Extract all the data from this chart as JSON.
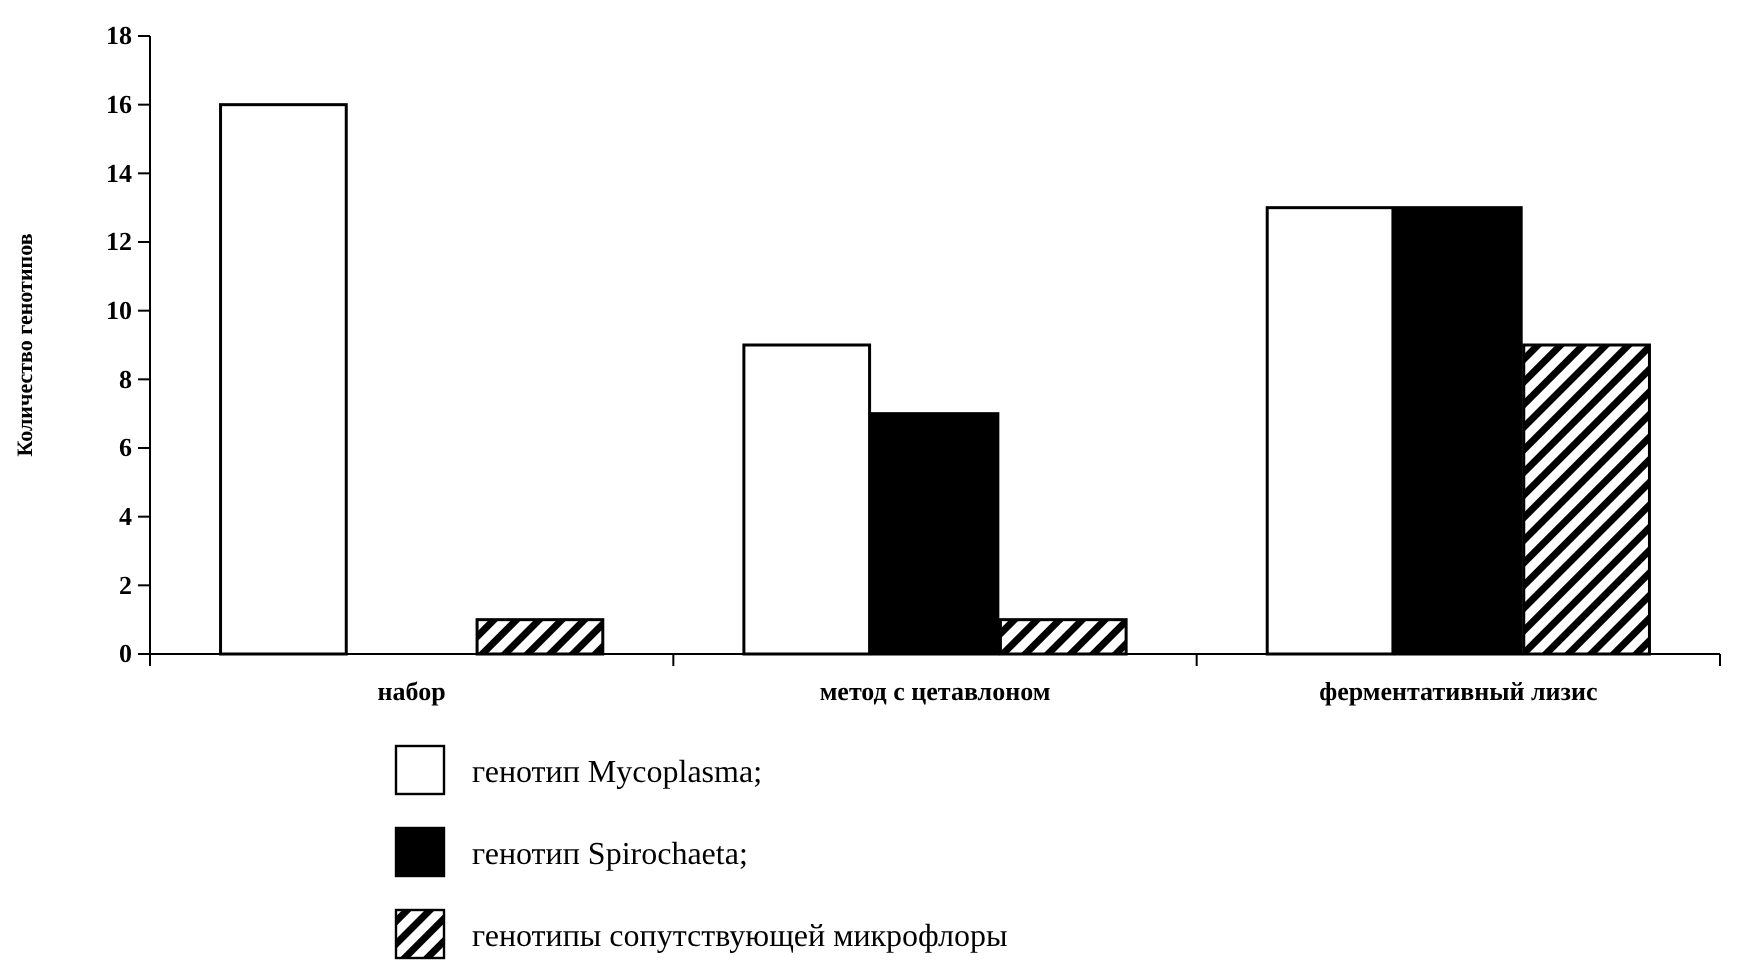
{
  "chart_data": {
    "type": "bar",
    "ylabel": "Количество генотипов",
    "categories": [
      "набор",
      "метод с цетавлоном",
      "ферментативный лизис"
    ],
    "series": [
      {
        "name": "генотип Mycoplasma;",
        "color": "#ffffff",
        "values": [
          16,
          9,
          13
        ]
      },
      {
        "name": "генотип Spirochaeta;",
        "color": "#000000",
        "values": [
          0,
          7,
          13
        ]
      },
      {
        "name": "генотипы сопутствующей микрофлоры",
        "color": "#000000",
        "values": [
          1,
          1,
          9
        ]
      }
    ],
    "ylim": [
      0,
      18
    ],
    "yticks": [
      0,
      2,
      4,
      6,
      8,
      10,
      12,
      14,
      16,
      18
    ],
    "grid": false,
    "legend": "bottom"
  }
}
